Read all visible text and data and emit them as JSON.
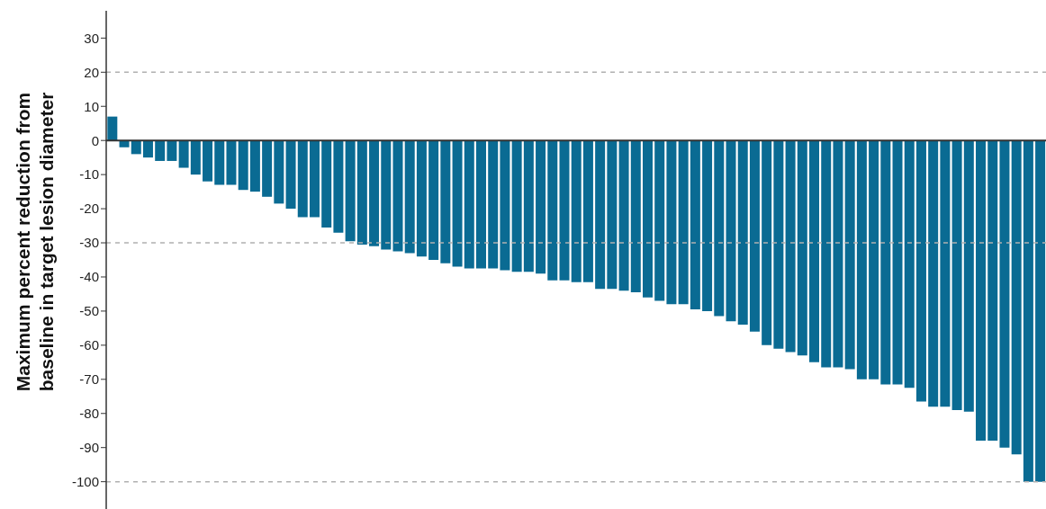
{
  "chart_data": {
    "type": "bar",
    "ylabel": "Maximum percent reduction from\nbaseline in target lesion diameter",
    "categories": [
      null,
      null,
      null,
      null,
      null,
      null,
      null,
      null,
      null,
      null,
      null,
      null,
      null,
      null,
      null,
      null,
      null,
      null,
      null,
      null,
      null,
      null,
      null,
      null,
      null,
      null,
      null,
      null,
      null,
      null,
      null,
      null,
      null,
      null,
      null,
      null,
      null,
      null,
      null,
      null,
      null,
      null,
      null,
      null,
      null,
      null,
      null,
      null,
      null,
      null,
      null,
      null,
      null,
      null,
      null,
      null,
      null,
      null,
      null,
      null,
      null,
      null,
      null,
      null,
      null,
      null,
      null,
      null,
      null,
      null,
      null,
      null,
      null,
      null,
      null,
      null,
      null,
      null,
      null
    ],
    "values": [
      7,
      -2,
      -4,
      -5,
      -6,
      -6,
      -8,
      -10,
      -12,
      -13,
      -13,
      -14.5,
      -15,
      -16.5,
      -18.5,
      -20,
      -22.5,
      -22.5,
      -25.5,
      -27,
      -29.5,
      -30.5,
      -31,
      -32,
      -32.5,
      -33,
      -34,
      -35,
      -36,
      -37,
      -37.5,
      -37.5,
      -37.5,
      -38,
      -38.5,
      -38.5,
      -39,
      -41,
      -41,
      -41.5,
      -41.5,
      -43.5,
      -43.5,
      -44,
      -44.5,
      -46,
      -47,
      -48,
      -48,
      -49.5,
      -50,
      -51.5,
      -53,
      -54,
      -56,
      -60,
      -61,
      -62,
      -63,
      -65,
      -66.5,
      -66.5,
      -67,
      -70,
      -70,
      -71.5,
      -71.5,
      -72.5,
      -76.5,
      -78,
      -78,
      -79,
      -79.5,
      -88,
      -88,
      -90,
      -92,
      -100,
      -100
    ],
    "color": "#0a6b93",
    "ylim": [
      -108,
      38
    ],
    "yticks": [
      30,
      20,
      10,
      0,
      -10,
      -20,
      -30,
      -40,
      -50,
      -60,
      -70,
      -80,
      -90,
      -100
    ],
    "tick_labels": "y",
    "grid": false,
    "ref_lines": [
      {
        "axis": "y",
        "value": 20,
        "color": "#b0b0b0",
        "line_style": "dashed"
      },
      {
        "axis": "y",
        "value": -30,
        "color": "#b0b0b0",
        "line_style": "dashed"
      },
      {
        "axis": "y",
        "value": -100,
        "color": "#b0b0b0",
        "line_style": "dashed"
      },
      {
        "axis": "y",
        "value": 0,
        "color": "#333333",
        "line_style": "solid"
      }
    ]
  }
}
